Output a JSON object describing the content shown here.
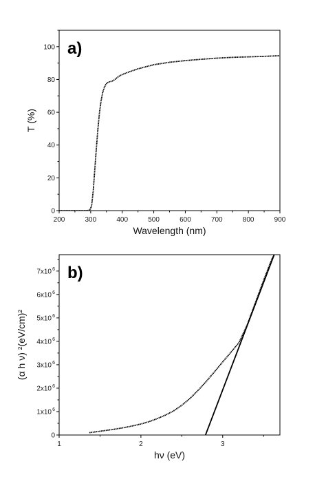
{
  "chart_data": [
    {
      "panel_label": "a)",
      "type": "line",
      "xlabel": "Wavelength (nm)",
      "ylabel": "T (%)",
      "xlim": [
        200,
        900
      ],
      "ylim": [
        0,
        110
      ],
      "xticks": [
        "200",
        "300",
        "400",
        "500",
        "600",
        "700",
        "800",
        "900"
      ],
      "yticks": [
        "0",
        "20",
        "40",
        "60",
        "80",
        "100"
      ],
      "grid": false,
      "series": [
        {
          "marker": "dotted line",
          "color": "#000000",
          "x": [
            200,
            250,
            290,
            298,
            303,
            308,
            313,
            318,
            323,
            328,
            333,
            338,
            343,
            348,
            353,
            358,
            363,
            368,
            373,
            378,
            383,
            390,
            400,
            420,
            450,
            480,
            500,
            550,
            600,
            650,
            700,
            750,
            800,
            850,
            900
          ],
          "y": [
            0,
            0,
            0,
            0.5,
            3,
            12,
            25,
            38,
            50,
            60,
            67,
            72,
            75,
            77,
            78,
            78.5,
            78.7,
            79,
            79.5,
            80.2,
            81,
            82,
            83,
            84.5,
            86.5,
            88,
            89,
            90.5,
            91.5,
            92.3,
            93,
            93.5,
            93.8,
            94.1,
            94.5
          ]
        }
      ]
    },
    {
      "panel_label": "b)",
      "type": "line",
      "xlabel": "hν (eV)",
      "ylabel": "(α h ν) ²(eV/cm)²",
      "xlim": [
        1,
        3.7
      ],
      "ylim": [
        0,
        7700000
      ],
      "xticks": [
        "1",
        "2",
        "3"
      ],
      "yticks": [
        {
          "base": "0",
          "exp": ""
        },
        {
          "base": "1x10",
          "exp": "6"
        },
        {
          "base": "2x10",
          "exp": "6"
        },
        {
          "base": "3x10",
          "exp": "6"
        },
        {
          "base": "4x10",
          "exp": "6"
        },
        {
          "base": "5x10",
          "exp": "6"
        },
        {
          "base": "6x10",
          "exp": "6"
        },
        {
          "base": "7x10",
          "exp": "6"
        }
      ],
      "grid": false,
      "series": [
        {
          "marker": "dotted line",
          "color": "#000000",
          "x": [
            1.37,
            1.5,
            1.6,
            1.7,
            1.8,
            1.9,
            2.0,
            2.1,
            2.2,
            2.3,
            2.4,
            2.5,
            2.6,
            2.7,
            2.8,
            2.9,
            3.0,
            3.1,
            3.2,
            3.3,
            3.4,
            3.5,
            3.6,
            3.63
          ],
          "y": [
            100000,
            160000,
            210000,
            260000,
            320000,
            390000,
            470000,
            570000,
            700000,
            850000,
            1030000,
            1270000,
            1560000,
            1910000,
            2290000,
            2700000,
            3120000,
            3530000,
            3950000,
            4700000,
            5650000,
            6600000,
            7500000,
            7700000
          ]
        },
        {
          "marker": "solid line",
          "color": "#000000",
          "x": [
            2.79,
            3.63
          ],
          "y": [
            0,
            7700000
          ]
        }
      ]
    }
  ]
}
